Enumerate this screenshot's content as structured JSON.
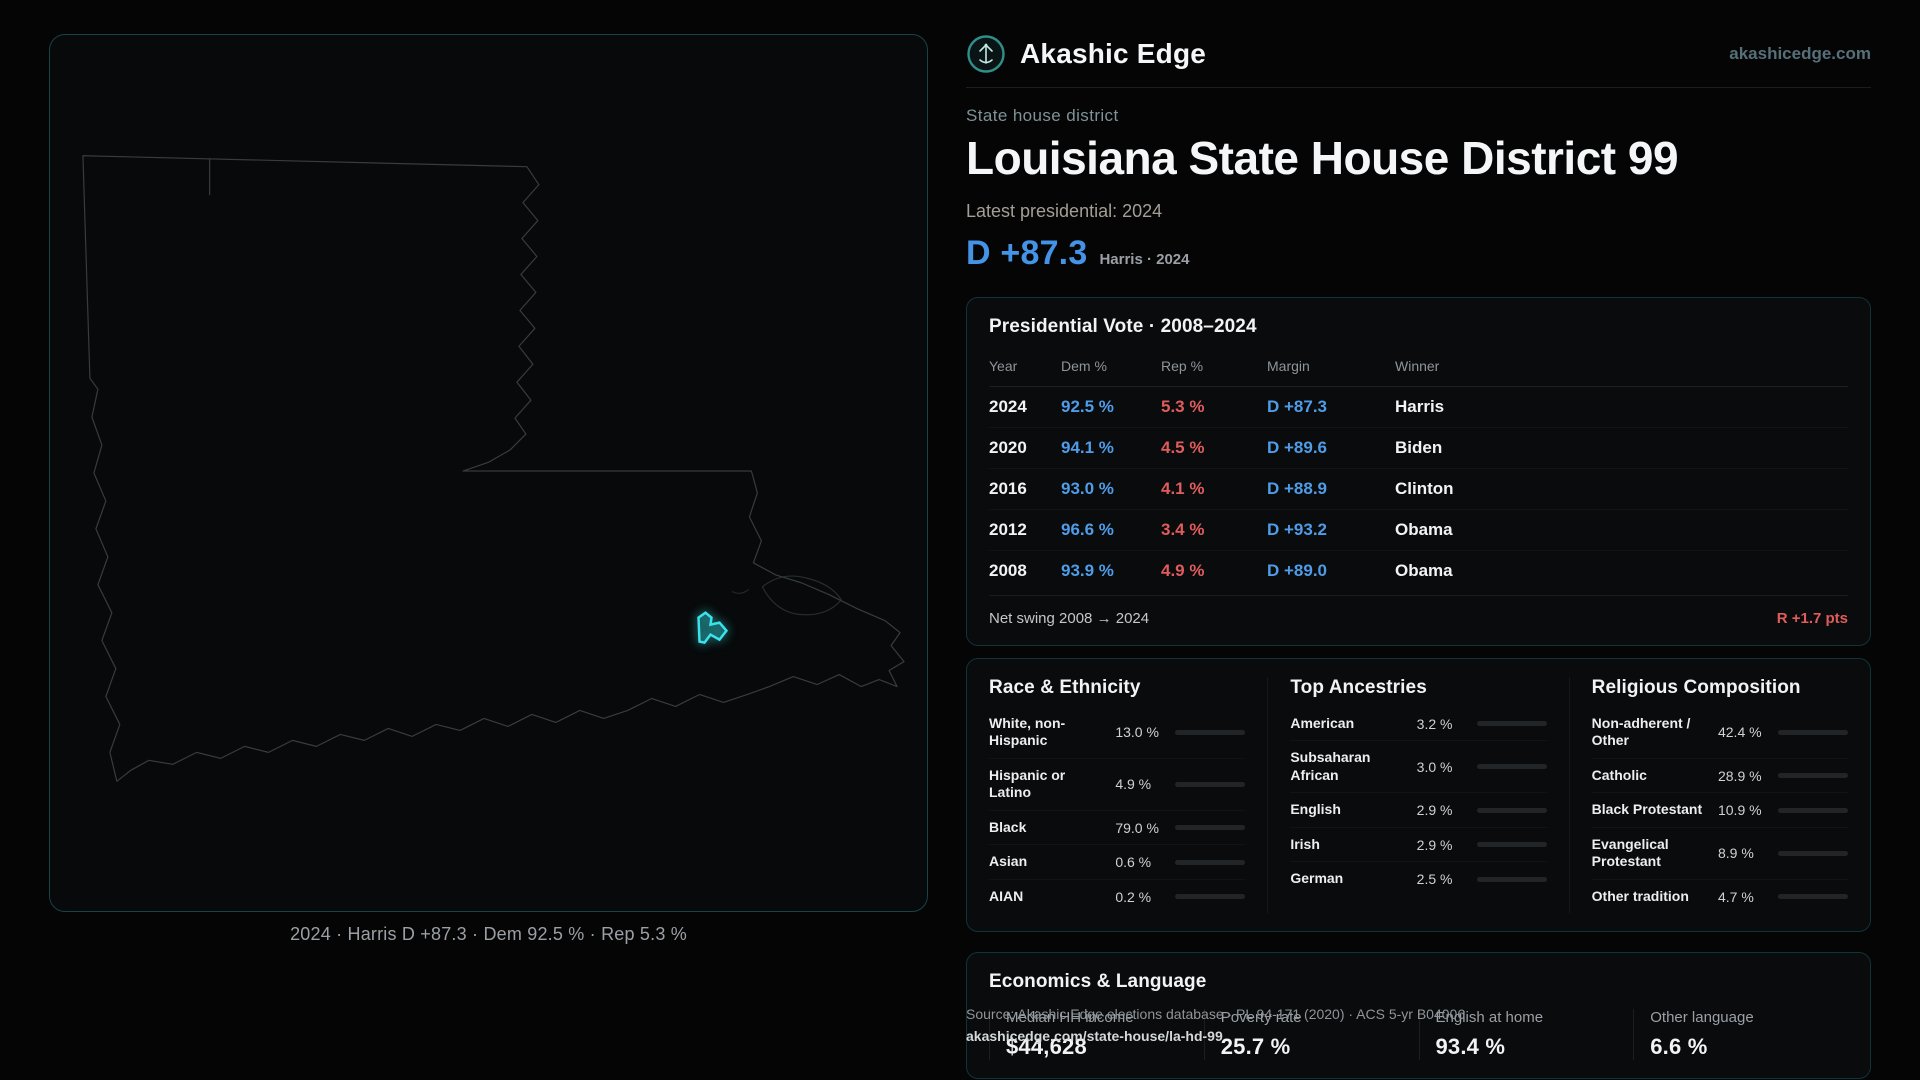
{
  "header": {
    "brand": "Akashic Edge",
    "site": "akashicedge.com"
  },
  "hero": {
    "kicker": "State house district",
    "title": "Louisiana State House District 99",
    "subtitle": "Latest presidential: 2024",
    "margin_value": "D +87.3",
    "margin_context": "Harris · 2024"
  },
  "map": {
    "caption": "2024 · Harris D +87.3 · Dem 92.5 % · Rep 5.3 %"
  },
  "presidential_table": {
    "title": "Presidential Vote · 2008–2024",
    "columns": {
      "year": "Year",
      "dem": "Dem %",
      "rep": "Rep %",
      "margin": "Margin",
      "winner": "Winner"
    },
    "rows": [
      {
        "year": "2024",
        "dem": "92.5 %",
        "rep": "5.3 %",
        "margin": "D +87.3",
        "winner": "Harris"
      },
      {
        "year": "2020",
        "dem": "94.1 %",
        "rep": "4.5 %",
        "margin": "D +89.6",
        "winner": "Biden"
      },
      {
        "year": "2016",
        "dem": "93.0 %",
        "rep": "4.1 %",
        "margin": "D +88.9",
        "winner": "Clinton"
      },
      {
        "year": "2012",
        "dem": "96.6 %",
        "rep": "3.4 %",
        "margin": "D +93.2",
        "winner": "Obama"
      },
      {
        "year": "2008",
        "dem": "93.9 %",
        "rep": "4.9 %",
        "margin": "D +89.0",
        "winner": "Obama"
      }
    ],
    "footer_label": "Net swing 2008 → 2024",
    "footer_value": "R +1.7 pts"
  },
  "demographics": {
    "race": {
      "title": "Race & Ethnicity",
      "rows": [
        {
          "label": "White, non-Hispanic",
          "value": "13.0 %",
          "pct": 13.0,
          "color": "#9aa0a6"
        },
        {
          "label": "Hispanic or Latino",
          "value": "4.9 %",
          "pct": 4.9,
          "color": "#e8a33d"
        },
        {
          "label": "Black",
          "value": "79.0 %",
          "pct": 79.0,
          "color": "#8b7fe8"
        },
        {
          "label": "Asian",
          "value": "0.6 %",
          "pct": 0.6,
          "color": "#3dbf8a"
        },
        {
          "label": "AIAN",
          "value": "0.2 %",
          "pct": 0.2,
          "color": "#e07a4a"
        }
      ]
    },
    "ancestries": {
      "title": "Top Ancestries",
      "rows": [
        {
          "label": "American",
          "value": "3.2 %",
          "pct": 3.2,
          "color": "#9aa0a6"
        },
        {
          "label": "Subsaharan African",
          "value": "3.0 %",
          "pct": 3.0,
          "color": "#8b7fe8"
        },
        {
          "label": "English",
          "value": "2.9 %",
          "pct": 2.9,
          "color": "#8b7fe8"
        },
        {
          "label": "Irish",
          "value": "2.9 %",
          "pct": 2.9,
          "color": "#8b7fe8"
        },
        {
          "label": "German",
          "value": "2.5 %",
          "pct": 2.5,
          "color": "#8b7fe8"
        }
      ]
    },
    "religion": {
      "title": "Religious Composition",
      "rows": [
        {
          "label": "Non-adherent / Other",
          "value": "42.4 %",
          "pct": 42.4,
          "color": "#9aa0a6"
        },
        {
          "label": "Catholic",
          "value": "28.9 %",
          "pct": 28.9,
          "color": "#d9a43a"
        },
        {
          "label": "Black Protestant",
          "value": "10.9 %",
          "pct": 10.9,
          "color": "#8b7fe8"
        },
        {
          "label": "Evangelical Protestant",
          "value": "8.9 %",
          "pct": 8.9,
          "color": "#e05c5c"
        },
        {
          "label": "Other tradition",
          "value": "4.7 %",
          "pct": 4.7,
          "color": "#9aa0a6"
        }
      ]
    }
  },
  "economics": {
    "title": "Economics & Language",
    "stats": [
      {
        "label": "Median HH income",
        "value": "$44,628"
      },
      {
        "label": "Poverty rate",
        "value": "25.7 %"
      },
      {
        "label": "English at home",
        "value": "93.4 %"
      },
      {
        "label": "Other language",
        "value": "6.6 %"
      }
    ]
  },
  "footer": {
    "source": "Source: Akashic Edge elections database · PL 94-171 (2020) · ACS 5-yr B04006",
    "permalink": "akashicedge.com/state-house/la-hd-99"
  },
  "colors": {
    "dem_blue": "#4f9ce8",
    "rep_red": "#e05c5c",
    "accent_cyan": "#3ae2ea",
    "card_border_teal": "#10343a"
  }
}
